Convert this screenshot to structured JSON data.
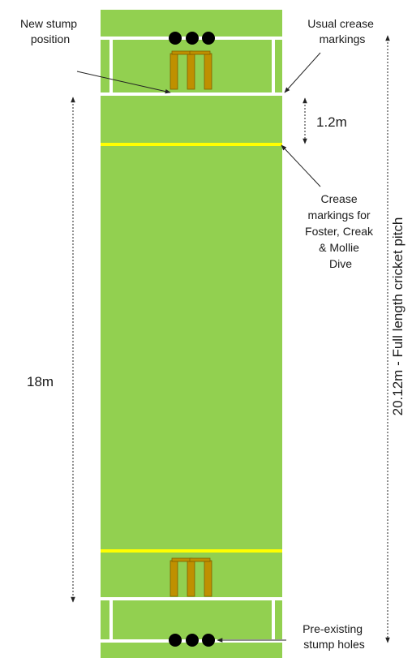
{
  "labels": {
    "new_stump": [
      "New stump",
      "position"
    ],
    "usual_crease": [
      "Usual crease",
      "markings"
    ],
    "gap": "1.2m",
    "crease_markings": [
      "Crease",
      "markings for",
      "Foster, Creak",
      "& Mollie",
      "Dive"
    ],
    "short_length": "18m",
    "full_length": "20.12m - Full length cricket pitch",
    "stump_holes": [
      "Pre-existing",
      "stump holes"
    ]
  }
}
